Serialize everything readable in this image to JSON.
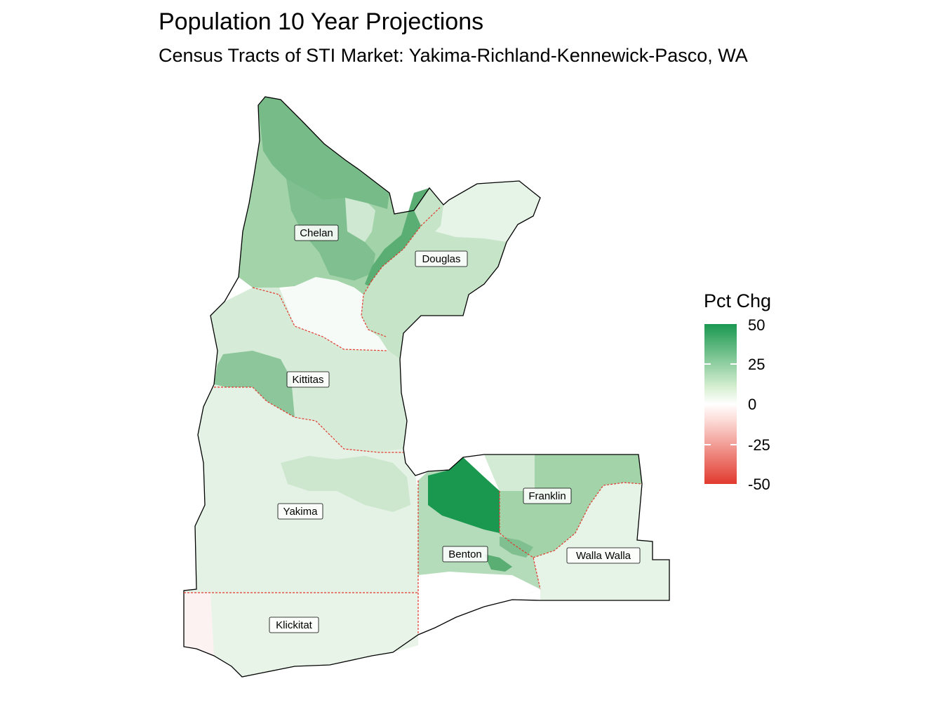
{
  "title": "Population 10 Year Projections",
  "subtitle": "Census Tracts of STI Market: Yakima-Richland-Kennewick-Pasco, WA",
  "legend": {
    "title": "Pct Chg",
    "ticks": [
      "50",
      "25",
      "0",
      "-25",
      "-50"
    ],
    "low_color": "#e13a2e",
    "mid_color": "#ffffff",
    "high_color": "#1a9850"
  },
  "counties": [
    {
      "name": "Chelan",
      "pct_chg": 22
    },
    {
      "name": "Douglas",
      "pct_chg": 10
    },
    {
      "name": "Kittitas",
      "pct_chg": 13
    },
    {
      "name": "Yakima",
      "pct_chg": 6
    },
    {
      "name": "Klickitat",
      "pct_chg": 5
    },
    {
      "name": "Benton",
      "pct_chg": 14
    },
    {
      "name": "Franklin",
      "pct_chg": 20
    },
    {
      "name": "Walla Walla",
      "pct_chg": 6
    }
  ]
}
